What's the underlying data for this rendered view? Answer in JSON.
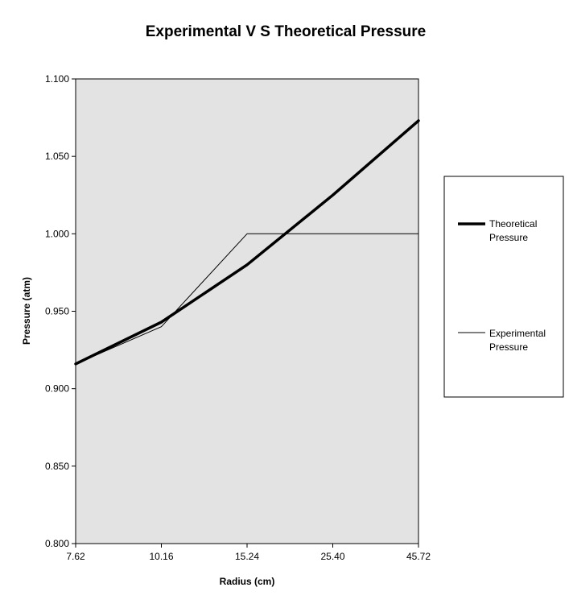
{
  "chart_data": {
    "type": "line",
    "title": "Experimental V S Theoretical Pressure",
    "xlabel": "Radius (cm)",
    "ylabel": "Pressure (atm)",
    "categories": [
      "7.62",
      "10.16",
      "15.24",
      "25.40",
      "45.72"
    ],
    "ylim": [
      0.8,
      1.1
    ],
    "yticks": [
      "0.800",
      "0.850",
      "0.900",
      "0.950",
      "1.000",
      "1.050",
      "1.100"
    ],
    "grid": false,
    "legend_position": "right",
    "plot_background": "#e3e3e3",
    "series": [
      {
        "name": "Theoretical Pressure",
        "legend_lines": [
          "Theoretical",
          "Pressure"
        ],
        "values": [
          0.916,
          0.943,
          0.98,
          1.025,
          1.073
        ],
        "color": "#000000",
        "style": "thick"
      },
      {
        "name": "Experimental Pressure",
        "legend_lines": [
          "Experimental",
          "Pressure"
        ],
        "values": [
          0.916,
          0.94,
          1.0,
          1.0,
          1.0
        ],
        "color": "#000000",
        "style": "thin"
      }
    ]
  }
}
